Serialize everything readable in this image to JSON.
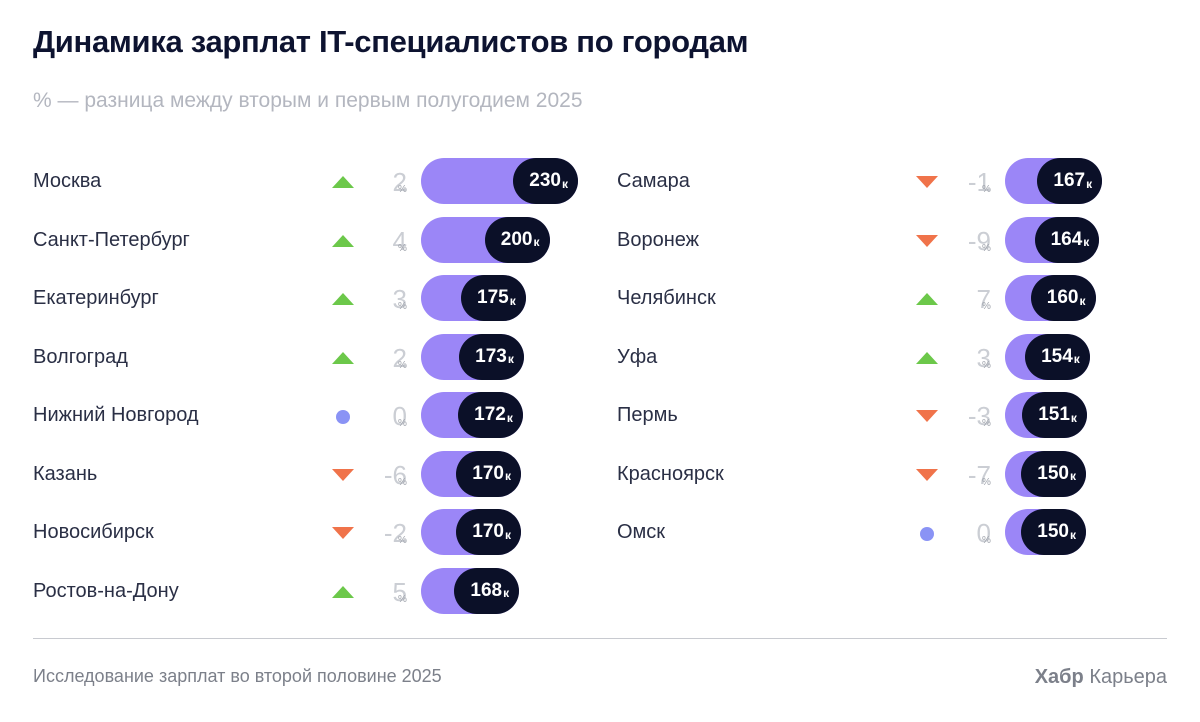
{
  "title": "Динамика зарплат IT-специалистов по городам",
  "subtitle": "% — разница между вторым и первым полугодием 2025",
  "footer": {
    "note": "Исследование зарплат во второй половине 2025",
    "brand_bold": "Хабр",
    "brand_rest": "Карьера"
  },
  "colors": {
    "up": "#6cc84a",
    "down": "#f0734a",
    "flat": "#8a93f5",
    "bar": "#9b86f7",
    "pill": "#0b1028"
  },
  "chart_data": {
    "type": "bar",
    "value_unit": "к",
    "change_unit": "%",
    "columns": [
      [
        {
          "city": "Москва",
          "change": "2",
          "trend": "up",
          "value": 230
        },
        {
          "city": "Санкт-Петербург",
          "change": "4",
          "trend": "up",
          "value": 200
        },
        {
          "city": "Екатеринбург",
          "change": "3",
          "trend": "up",
          "value": 175
        },
        {
          "city": "Волгоград",
          "change": "2",
          "trend": "up",
          "value": 173
        },
        {
          "city": "Нижний Новгород",
          "change": "0",
          "trend": "flat",
          "value": 172
        },
        {
          "city": "Казань",
          "change": "-6",
          "trend": "down",
          "value": 170
        },
        {
          "city": "Новосибирск",
          "change": "-2",
          "trend": "down",
          "value": 170
        },
        {
          "city": "Ростов-на-Дону",
          "change": "5",
          "trend": "up",
          "value": 168
        }
      ],
      [
        {
          "city": "Самара",
          "change": "-1",
          "trend": "down",
          "value": 167
        },
        {
          "city": "Воронеж",
          "change": "-9",
          "trend": "down",
          "value": 164
        },
        {
          "city": "Челябинск",
          "change": "7",
          "trend": "up",
          "value": 160
        },
        {
          "city": "Уфа",
          "change": "3",
          "trend": "up",
          "value": 154
        },
        {
          "city": "Пермь",
          "change": "-3",
          "trend": "down",
          "value": 151
        },
        {
          "city": "Красноярск",
          "change": "-7",
          "trend": "down",
          "value": 150
        },
        {
          "city": "Омск",
          "change": "0",
          "trend": "flat",
          "value": 150
        }
      ]
    ]
  }
}
